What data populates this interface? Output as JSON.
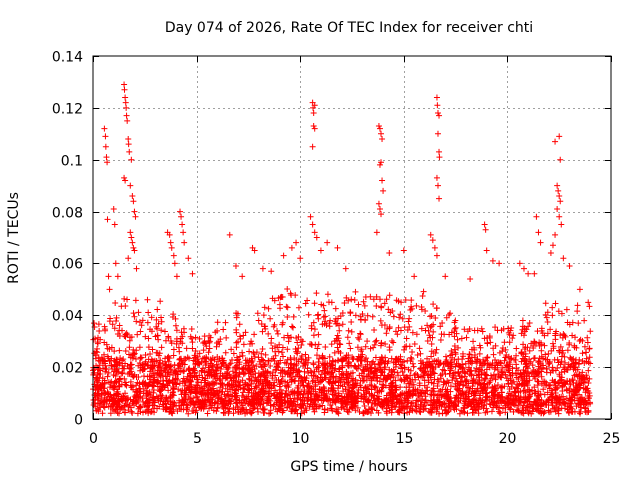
{
  "chart_data": {
    "type": "scatter",
    "title": "Day 074 of 2026, Rate Of TEC Index for receiver chti",
    "xlabel": "GPS time / hours",
    "ylabel": "ROTI / TECUs",
    "xlim": [
      0,
      25
    ],
    "ylim": [
      0,
      0.14
    ],
    "xticks": [
      0,
      5,
      10,
      15,
      20,
      25
    ],
    "xtick_labels": [
      "0",
      "5",
      "10",
      "15",
      "20",
      "25"
    ],
    "yticks": [
      0,
      0.02,
      0.04,
      0.06,
      0.08,
      0.1,
      0.12,
      0.14
    ],
    "ytick_labels": [
      "0",
      "0.02",
      "0.04",
      "0.06",
      "0.08",
      "0.1",
      "0.12",
      "0.14"
    ],
    "grid": true,
    "marker": "+",
    "series": [
      {
        "name": "ROTI",
        "color": "#ff0000",
        "data_range_hours": [
          0,
          24
        ],
        "typical_value": 0.015,
        "points": [
          [
            0.05,
            0.037
          ],
          [
            0.1,
            0.031
          ],
          [
            0.15,
            0.026
          ],
          [
            0.55,
            0.112
          ],
          [
            0.6,
            0.109
          ],
          [
            0.62,
            0.105
          ],
          [
            0.65,
            0.101
          ],
          [
            0.68,
            0.099
          ],
          [
            0.7,
            0.077
          ],
          [
            0.75,
            0.055
          ],
          [
            0.8,
            0.05
          ],
          [
            1.0,
            0.081
          ],
          [
            1.05,
            0.075
          ],
          [
            1.1,
            0.06
          ],
          [
            1.2,
            0.055
          ],
          [
            1.5,
            0.129
          ],
          [
            1.52,
            0.127
          ],
          [
            1.55,
            0.124
          ],
          [
            1.58,
            0.122
          ],
          [
            1.6,
            0.12
          ],
          [
            1.62,
            0.117
          ],
          [
            1.65,
            0.115
          ],
          [
            1.7,
            0.108
          ],
          [
            1.72,
            0.106
          ],
          [
            1.75,
            0.103
          ],
          [
            1.5,
            0.093
          ],
          [
            1.55,
            0.092
          ],
          [
            1.8,
            0.09
          ],
          [
            1.85,
            0.1
          ],
          [
            1.9,
            0.086
          ],
          [
            1.95,
            0.084
          ],
          [
            2.0,
            0.08
          ],
          [
            2.05,
            0.078
          ],
          [
            1.8,
            0.072
          ],
          [
            1.85,
            0.07
          ],
          [
            1.9,
            0.068
          ],
          [
            1.95,
            0.066
          ],
          [
            2.0,
            0.065
          ],
          [
            1.7,
            0.062
          ],
          [
            2.1,
            0.058
          ],
          [
            3.6,
            0.072
          ],
          [
            3.7,
            0.071
          ],
          [
            3.75,
            0.068
          ],
          [
            3.8,
            0.066
          ],
          [
            3.9,
            0.063
          ],
          [
            3.95,
            0.06
          ],
          [
            4.05,
            0.055
          ],
          [
            4.2,
            0.08
          ],
          [
            4.25,
            0.078
          ],
          [
            4.3,
            0.075
          ],
          [
            4.35,
            0.072
          ],
          [
            4.4,
            0.068
          ],
          [
            4.6,
            0.062
          ],
          [
            4.8,
            0.056
          ],
          [
            6.6,
            0.071
          ],
          [
            6.9,
            0.059
          ],
          [
            7.2,
            0.055
          ],
          [
            7.7,
            0.066
          ],
          [
            7.8,
            0.065
          ],
          [
            8.2,
            0.058
          ],
          [
            8.6,
            0.057
          ],
          [
            9.2,
            0.063
          ],
          [
            9.6,
            0.066
          ],
          [
            9.8,
            0.068
          ],
          [
            10.0,
            0.062
          ],
          [
            10.6,
            0.122
          ],
          [
            10.62,
            0.12
          ],
          [
            10.65,
            0.118
          ],
          [
            10.7,
            0.121
          ],
          [
            10.65,
            0.113
          ],
          [
            10.7,
            0.112
          ],
          [
            10.6,
            0.105
          ],
          [
            10.5,
            0.078
          ],
          [
            10.6,
            0.075
          ],
          [
            10.7,
            0.072
          ],
          [
            10.8,
            0.07
          ],
          [
            11.0,
            0.065
          ],
          [
            11.3,
            0.068
          ],
          [
            11.8,
            0.066
          ],
          [
            12.2,
            0.058
          ],
          [
            13.8,
            0.113
          ],
          [
            13.85,
            0.112
          ],
          [
            13.9,
            0.11
          ],
          [
            13.95,
            0.108
          ],
          [
            13.9,
            0.099
          ],
          [
            13.85,
            0.098
          ],
          [
            13.95,
            0.092
          ],
          [
            14.0,
            0.088
          ],
          [
            13.8,
            0.083
          ],
          [
            13.85,
            0.081
          ],
          [
            13.9,
            0.079
          ],
          [
            13.7,
            0.072
          ],
          [
            14.3,
            0.064
          ],
          [
            15.0,
            0.065
          ],
          [
            15.5,
            0.055
          ],
          [
            16.6,
            0.124
          ],
          [
            16.62,
            0.121
          ],
          [
            16.65,
            0.118
          ],
          [
            16.7,
            0.117
          ],
          [
            16.65,
            0.11
          ],
          [
            16.7,
            0.103
          ],
          [
            16.72,
            0.101
          ],
          [
            16.6,
            0.093
          ],
          [
            16.65,
            0.09
          ],
          [
            16.7,
            0.085
          ],
          [
            16.3,
            0.071
          ],
          [
            16.4,
            0.069
          ],
          [
            16.5,
            0.066
          ],
          [
            16.6,
            0.063
          ],
          [
            17.0,
            0.055
          ],
          [
            18.2,
            0.054
          ],
          [
            18.9,
            0.075
          ],
          [
            18.95,
            0.073
          ],
          [
            19.0,
            0.065
          ],
          [
            19.3,
            0.061
          ],
          [
            19.6,
            0.06
          ],
          [
            20.6,
            0.06
          ],
          [
            20.8,
            0.058
          ],
          [
            21.0,
            0.056
          ],
          [
            21.4,
            0.078
          ],
          [
            21.5,
            0.072
          ],
          [
            21.6,
            0.068
          ],
          [
            21.3,
            0.056
          ],
          [
            22.3,
            0.107
          ],
          [
            22.5,
            0.109
          ],
          [
            22.55,
            0.1
          ],
          [
            22.4,
            0.09
          ],
          [
            22.45,
            0.088
          ],
          [
            22.5,
            0.086
          ],
          [
            22.55,
            0.084
          ],
          [
            22.4,
            0.081
          ],
          [
            22.5,
            0.078
          ],
          [
            22.6,
            0.075
          ],
          [
            22.3,
            0.071
          ],
          [
            22.2,
            0.067
          ],
          [
            22.1,
            0.064
          ],
          [
            22.7,
            0.062
          ],
          [
            23.0,
            0.059
          ],
          [
            23.5,
            0.05
          ],
          [
            23.9,
            0.045
          ]
        ],
        "density_profile": {
          "baseline_hours": [
            0,
            2,
            4,
            6,
            8,
            10,
            12,
            14,
            16,
            18,
            20,
            22,
            24
          ],
          "upper_bulk_value": [
            0.03,
            0.045,
            0.035,
            0.032,
            0.04,
            0.045,
            0.042,
            0.045,
            0.045,
            0.032,
            0.03,
            0.04,
            0.038
          ]
        }
      }
    ]
  }
}
